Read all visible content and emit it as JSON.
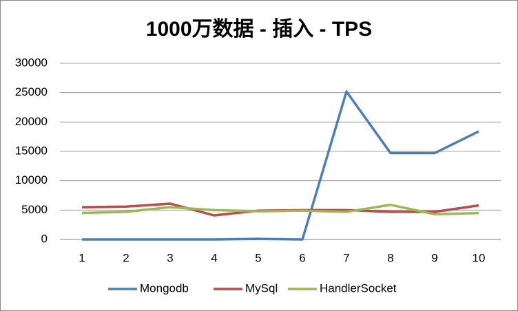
{
  "chart_data": {
    "type": "line",
    "title": "1000万数据 - 插入 - TPS",
    "categories": [
      "1",
      "2",
      "3",
      "4",
      "5",
      "6",
      "7",
      "8",
      "9",
      "10"
    ],
    "series": [
      {
        "name": "Mongodb",
        "color": "#4a7ebb",
        "values": [
          0,
          0,
          0,
          0,
          100,
          0,
          25200,
          14700,
          14700,
          18400
        ]
      },
      {
        "name": "MySql",
        "color": "#be4b48",
        "values": [
          5500,
          5600,
          6100,
          4100,
          4900,
          5000,
          5000,
          4700,
          4700,
          5800
        ]
      },
      {
        "name": "HandlerSocket",
        "color": "#98b954",
        "values": [
          4500,
          4700,
          5500,
          5000,
          4800,
          4900,
          4700,
          5900,
          4300,
          4500
        ]
      }
    ],
    "ylim": [
      0,
      30000
    ],
    "yticks": [
      0,
      5000,
      10000,
      15000,
      20000,
      25000,
      30000
    ],
    "grid": true,
    "legend": "bottom"
  }
}
